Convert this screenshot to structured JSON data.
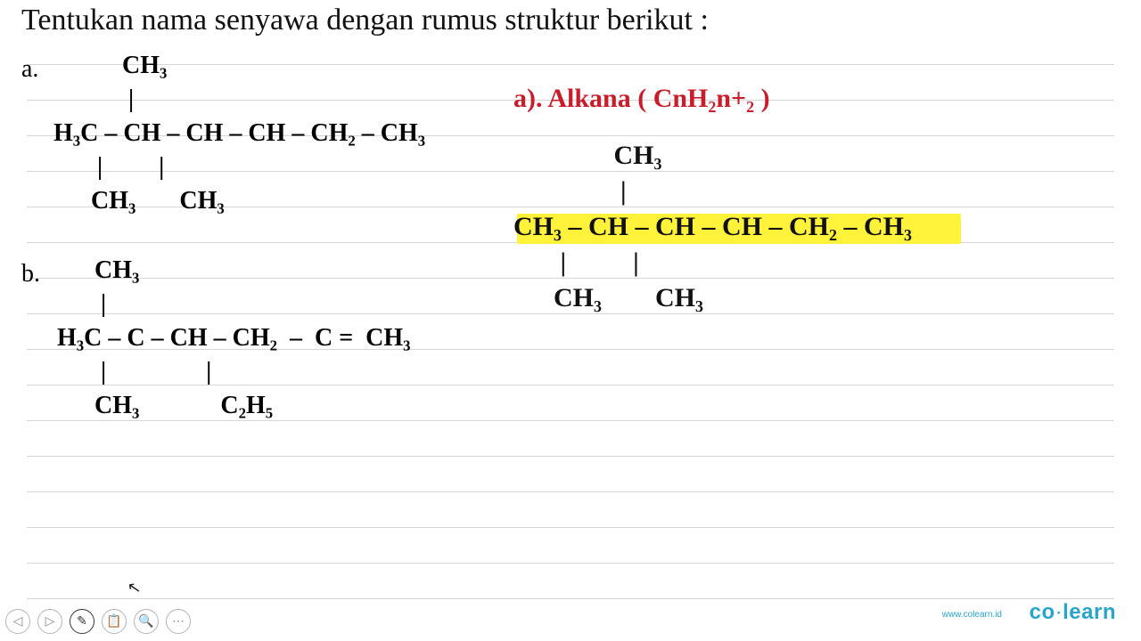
{
  "title": "Tentukan nama senyawa dengan rumus struktur berikut :",
  "labels": {
    "a": "a.",
    "b": "b."
  },
  "struct_a": {
    "r1": "           CH₃",
    "r2": "            |",
    "r3": "H₃C – CH – CH – CH – CH₂ – CH₃",
    "r4": "       |         |",
    "r5": "      CH₃       CH₃"
  },
  "struct_b": {
    "r1": "      CH₃",
    "r2": "       |",
    "r3": "H₃C – C – CH – CH₂  –  C =  CH₃",
    "r4": "       |                |",
    "r5": "      CH₃             C₂H₅"
  },
  "answer": {
    "red": "a).  Alkana  ( CnH₂n+₂ )",
    "chain_r1": "               CH₃",
    "chain_r2": "                |",
    "chain_r3": "CH₃ – CH – CH – CH – CH₂ – CH₃",
    "chain_r4": "       |          |",
    "chain_r5": "      CH₃        CH₃"
  },
  "highlight_color": "#fff23a",
  "rule_color": "#d6d6d6",
  "toolbar": {
    "items": [
      "◁",
      "▷",
      "✎",
      "📋",
      "🔍",
      "⋯"
    ],
    "active_index": 2
  },
  "brand": {
    "url": "www.colearn.id",
    "name_a": "co",
    "dot": "·",
    "name_b": "learn"
  },
  "rule_tops": [
    72,
    112,
    152,
    192,
    232,
    272,
    312,
    352,
    392,
    432,
    472,
    512,
    552,
    592,
    632,
    672
  ]
}
